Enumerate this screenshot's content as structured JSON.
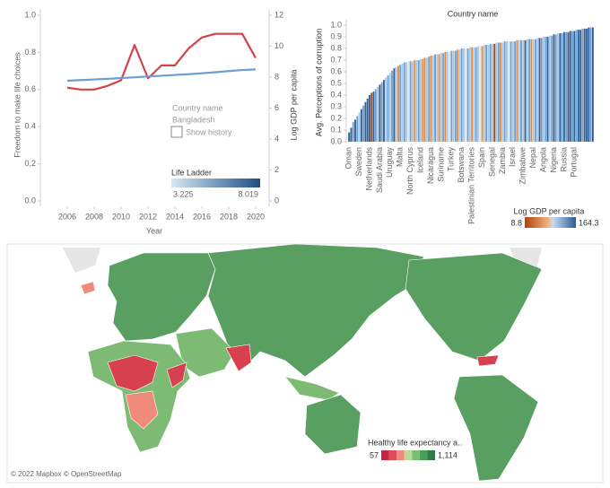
{
  "chart_data": [
    {
      "type": "line",
      "x": [
        2006,
        2007,
        2008,
        2009,
        2010,
        2011,
        2012,
        2013,
        2014,
        2015,
        2016,
        2017,
        2018,
        2019,
        2020
      ],
      "xlim": [
        2004,
        2021
      ],
      "xticks": [
        2006,
        2008,
        2010,
        2012,
        2014,
        2016,
        2018,
        2020
      ],
      "xlabel": "Year",
      "ylabel": "Freedom to make life choices",
      "y2label": "Log GDP per capita",
      "ylim": [
        0,
        1
      ],
      "yticks": [
        {
          "value": 0,
          "label": "0.0"
        },
        0.2,
        0.4,
        0.6,
        0.8,
        {
          "value": 1,
          "label": "1.0"
        }
      ],
      "y2lim": [
        0,
        12
      ],
      "y2ticks": [
        0,
        2,
        4,
        6,
        8,
        10,
        12
      ],
      "series": [
        {
          "color": "#d9404a",
          "values": [
            0.61,
            0.6,
            0.6,
            0.62,
            0.65,
            0.84,
            0.66,
            0.73,
            0.73,
            0.82,
            0.88,
            0.9,
            0.9,
            0.9,
            0.77
          ]
        },
        {
          "color": "#6a9fd0",
          "axis": "y2",
          "values": [
            7.77,
            7.81,
            7.85,
            7.89,
            7.94,
            7.99,
            8.04,
            8.09,
            8.14,
            8.19,
            8.25,
            8.32,
            8.39,
            8.46,
            8.5
          ]
        }
      ],
      "legend": {
        "field": "Country name",
        "selected": "Bangladesh",
        "checkbox": "Show history",
        "colorbar_title": "Life Ladder",
        "colorbar": [
          3.225,
          8.019
        ]
      }
    },
    {
      "type": "bar",
      "title": "Country name",
      "ylabel": "Avg. Perceptions of corruption",
      "ylim": [
        0,
        1
      ],
      "yticks": [
        {
          "value": 0,
          "label": "0.0"
        },
        0.1,
        0.2,
        0.3,
        0.4,
        0.5,
        0.6,
        0.7,
        0.8,
        0.9,
        {
          "value": 1,
          "label": "1.0"
        }
      ],
      "categories": [
        "Oman",
        null,
        null,
        null,
        null,
        "Sweden",
        null,
        null,
        null,
        null,
        "Netherlands",
        null,
        null,
        null,
        null,
        "Saudi Arabia",
        null,
        null,
        null,
        null,
        "Uruguay",
        null,
        null,
        null,
        null,
        "Malta",
        null,
        null,
        null,
        null,
        "North Cyprus",
        null,
        null,
        null,
        null,
        "Iceland",
        null,
        null,
        null,
        null,
        "Nicaragua",
        null,
        null,
        null,
        null,
        "Suriname",
        null,
        null,
        null,
        null,
        "Turkey",
        null,
        null,
        null,
        null,
        "Botswana",
        null,
        null,
        null,
        null,
        "Palestinian Territories",
        null,
        null,
        null,
        null,
        "Spain",
        null,
        null,
        null,
        null,
        "Senegal",
        null,
        null,
        null,
        null,
        "Zambia",
        null,
        null,
        null,
        null,
        "Israel",
        null,
        null,
        null,
        null,
        "Zimbabwe",
        null,
        null,
        null,
        null,
        "Nepal",
        null,
        null,
        null,
        null,
        "Angola",
        null,
        null,
        null,
        null,
        "Nigeria",
        null,
        null,
        null,
        null,
        "Russia",
        null,
        null,
        null,
        null,
        "Portugal",
        null,
        null,
        null,
        null,
        null,
        null,
        null,
        null,
        null
      ],
      "values": [
        0.08,
        0.12,
        0.17,
        0.19,
        0.22,
        0.25,
        0.28,
        0.31,
        0.34,
        0.37,
        0.4,
        0.42,
        0.43,
        0.45,
        0.47,
        0.49,
        0.51,
        0.53,
        0.55,
        0.57,
        0.59,
        0.61,
        0.63,
        0.64,
        0.65,
        0.66,
        0.67,
        0.68,
        0.68,
        0.69,
        0.69,
        0.69,
        0.7,
        0.7,
        0.7,
        0.71,
        0.71,
        0.72,
        0.72,
        0.73,
        0.74,
        0.74,
        0.75,
        0.75,
        0.75,
        0.76,
        0.76,
        0.77,
        0.77,
        0.77,
        0.78,
        0.78,
        0.78,
        0.79,
        0.79,
        0.8,
        0.8,
        0.8,
        0.8,
        0.81,
        0.81,
        0.81,
        0.81,
        0.82,
        0.82,
        0.82,
        0.83,
        0.83,
        0.83,
        0.84,
        0.84,
        0.84,
        0.85,
        0.85,
        0.85,
        0.85,
        0.86,
        0.86,
        0.86,
        0.86,
        0.86,
        0.86,
        0.87,
        0.87,
        0.87,
        0.87,
        0.87,
        0.88,
        0.88,
        0.88,
        0.88,
        0.88,
        0.89,
        0.89,
        0.89,
        0.9,
        0.9,
        0.9,
        0.91,
        0.91,
        0.92,
        0.92,
        0.93,
        0.93,
        0.93,
        0.94,
        0.94,
        0.94,
        0.95,
        0.95,
        0.95,
        0.96,
        0.96,
        0.96,
        0.97,
        0.97,
        0.97,
        0.98,
        0.98,
        0.98
      ],
      "colors": [
        "#2f5f98",
        "#2f5f98",
        "#6f9fcc",
        "#2f5f98",
        "#6f9fcc",
        "#a9c8e4",
        "#2f5f98",
        "#6f9fcc",
        "#2f5f98",
        "#2f5f98",
        "#2f5f98",
        "#a9450f",
        "#2f5f98",
        "#6f9fcc",
        "#a9c8e4",
        "#2f5f98",
        "#6f9fcc",
        "#2f5f98",
        "#a9c8e4",
        "#6f9fcc",
        "#a9c8e4",
        "#6f9fcc",
        "#2f5f98",
        "#a9c8e4",
        "#e58a3c",
        "#6f9fcc",
        "#a9c8e4",
        "#6f9fcc",
        "#a9c8e4",
        "#d7e5f1",
        "#6f9fcc",
        "#a9c8e4",
        "#e58a3c",
        "#a9c8e4",
        "#6f9fcc",
        "#a9c8e4",
        "#e58a3c",
        "#e58a3c",
        "#a9c8e4",
        "#6f9fcc",
        "#e58a3c",
        "#a9c8e4",
        "#6f9fcc",
        "#a9c8e4",
        "#e58a3c",
        "#a9c8e4",
        "#6f9fcc",
        "#e58a3c",
        "#a9c8e4",
        "#d7e5f1",
        "#6f9fcc",
        "#a9c8e4",
        "#6f9fcc",
        "#e58a3c",
        "#a9c8e4",
        "#6f9fcc",
        "#a9c8e4",
        "#d7e5f1",
        "#6f9fcc",
        "#a9c8e4",
        "#e58a3c",
        "#a9c8e4",
        "#6f9fcc",
        "#a9c8e4",
        "#d7e5f1",
        "#e58a3c",
        "#a9c8e4",
        "#6f9fcc",
        "#a9c8e4",
        "#6f9fcc",
        "#a9c8e4",
        "#a9450f",
        "#a9c8e4",
        "#6f9fcc",
        "#e58a3c",
        "#a9c8e4",
        "#6f9fcc",
        "#a9c8e4",
        "#d7e5f1",
        "#6f9fcc",
        "#a9c8e4",
        "#6f9fcc",
        "#e58a3c",
        "#a9c8e4",
        "#6f9fcc",
        "#a9c8e4",
        "#2f5f98",
        "#a9c8e4",
        "#6f9fcc",
        "#e58a3c",
        "#a9c8e4",
        "#6f9fcc",
        "#a9c8e4",
        "#2f5f98",
        "#6f9fcc",
        "#a9c8e4",
        "#6f9fcc",
        "#2f5f98",
        "#a9c8e4",
        "#6f9fcc",
        "#2f5f98",
        "#6f9fcc",
        "#a9c8e4",
        "#2f5f98",
        "#6f9fcc",
        "#2f5f98",
        "#6f9fcc",
        "#2f5f98",
        "#2f5f98",
        "#6f9fcc",
        "#2f5f98",
        "#6f9fcc",
        "#2f5f98",
        "#2f5f98",
        "#6f9fcc",
        "#2f5f98",
        "#2f5f98",
        "#2f5f98",
        "#6f9fcc",
        "#2f5f98"
      ],
      "legend": {
        "colorbar_title": "Log GDP per capita",
        "colorbar": [
          8.8,
          164.3
        ]
      }
    },
    {
      "type": "map",
      "legend": {
        "colorbar_title": "Healthy life expectancy a..",
        "colorbar": [
          57,
          {
            "value": 1114,
            "label": "1,114"
          }
        ],
        "colors": [
          "#c8283f",
          "#e0495a",
          "#f08a7a",
          "#b9d89a",
          "#7bbf73",
          "#4c9f5a",
          "#2e7d45"
        ]
      },
      "credit": "© 2022 Mapbox © OpenStreetMap"
    }
  ]
}
